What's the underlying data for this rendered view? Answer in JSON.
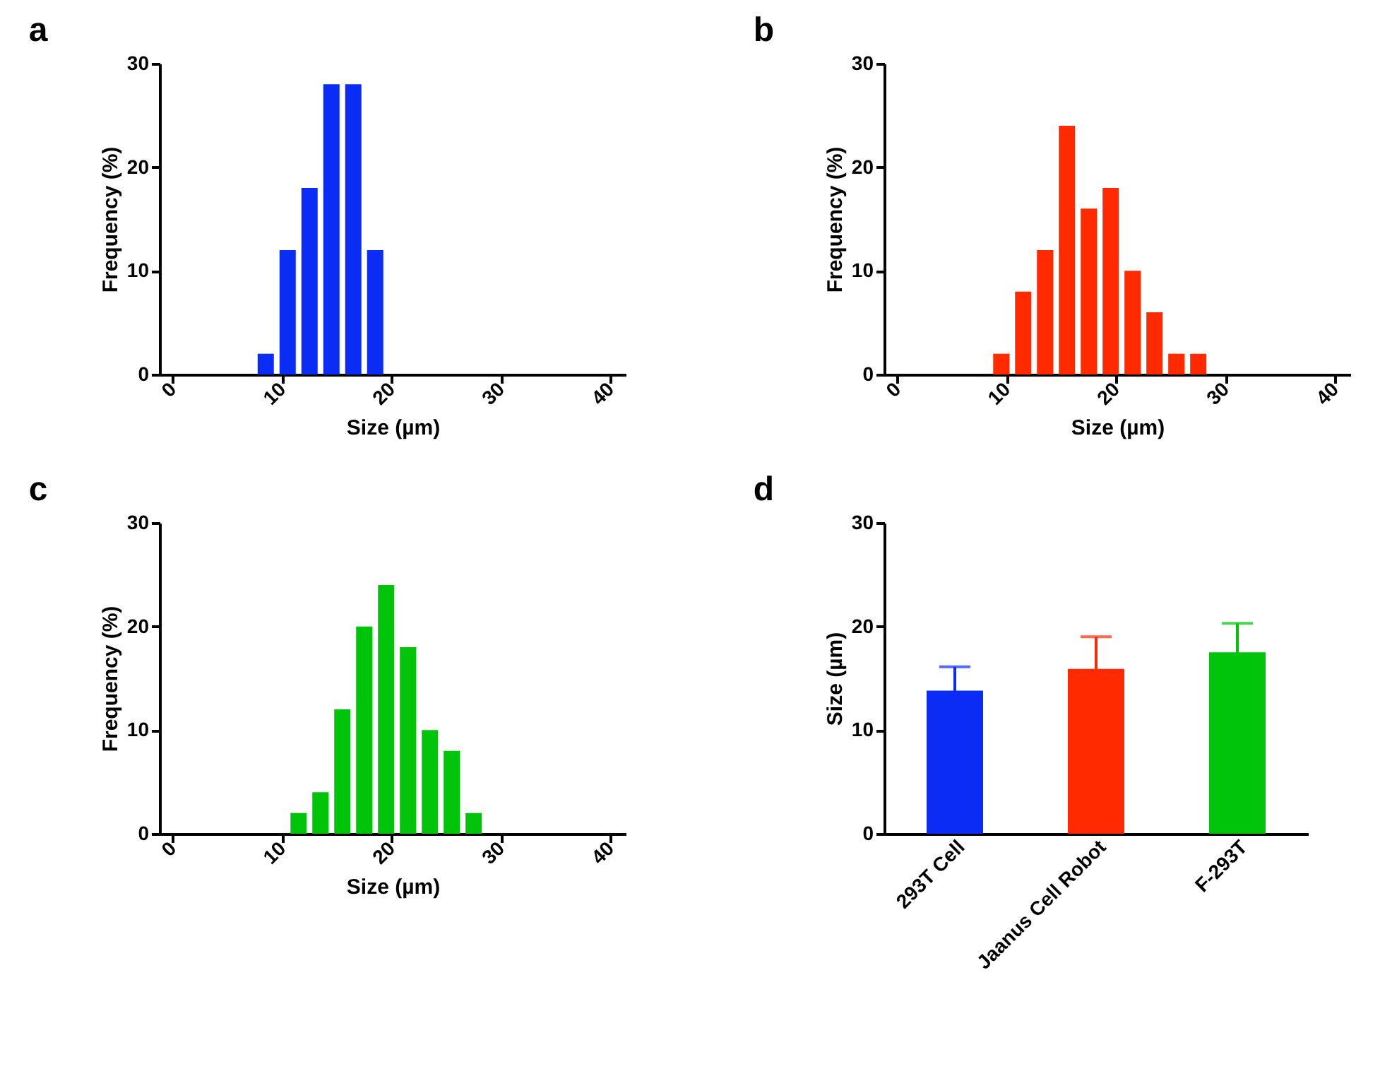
{
  "chart_data": [
    {
      "type": "histogram",
      "title": "a",
      "xlabel": "Size (µm)",
      "ylabel": "Frequency (%)",
      "bins": [
        7.5,
        9.5,
        11.5,
        13.5,
        15.5,
        17.5,
        19.5
      ],
      "values": [
        2,
        12,
        18,
        28,
        28,
        12
      ],
      "color": "#0a2cf5",
      "xlim": [
        -1.2,
        41.4
      ],
      "xticks": [
        0,
        10,
        20,
        30,
        40
      ],
      "ylim": [
        0,
        30
      ],
      "yticks": [
        0,
        10,
        20,
        30
      ],
      "grid": false
    },
    {
      "type": "histogram",
      "title": "b",
      "xlabel": "Size (µm)",
      "ylabel": "Frequency (%)",
      "bins": [
        8.5,
        10.5,
        12.5,
        14.5,
        16.5,
        18.5,
        20.5,
        22.5,
        24.5,
        26.5,
        28.5
      ],
      "values": [
        2,
        8,
        12,
        24,
        16,
        18,
        10,
        6,
        2,
        2
      ],
      "color": "#ff2a00",
      "xlim": [
        -1.2,
        41.4
      ],
      "xticks": [
        0,
        10,
        20,
        30,
        40
      ],
      "ylim": [
        0,
        30
      ],
      "yticks": [
        0,
        10,
        20,
        30
      ],
      "grid": false
    },
    {
      "type": "histogram",
      "title": "c",
      "xlabel": "Size (µm)",
      "ylabel": "Frequency (%)",
      "bins": [
        10.5,
        12.5,
        14.5,
        16.5,
        18.5,
        20.5,
        22.5,
        24.5,
        26.5,
        28.5
      ],
      "values": [
        2,
        4,
        12,
        20,
        24,
        18,
        10,
        8,
        2
      ],
      "color": "#00c40a",
      "xlim": [
        -1.2,
        41.4
      ],
      "xticks": [
        0,
        10,
        20,
        30,
        40
      ],
      "ylim": [
        0,
        30
      ],
      "yticks": [
        0,
        10,
        20,
        30
      ],
      "grid": false
    },
    {
      "type": "bar",
      "title": "d",
      "ylabel": "Size (µm)",
      "categories": [
        "293T Cell",
        "Jaanus Cell Robot",
        "F-293T"
      ],
      "values": [
        13.8,
        15.9,
        17.5
      ],
      "errors": [
        2.3,
        3.1,
        2.8
      ],
      "colors": [
        "#0a2cf5",
        "#ff2a00",
        "#00c40a"
      ],
      "ylim": [
        0,
        30
      ],
      "yticks": [
        0,
        10,
        20,
        30
      ],
      "grid": false
    }
  ]
}
